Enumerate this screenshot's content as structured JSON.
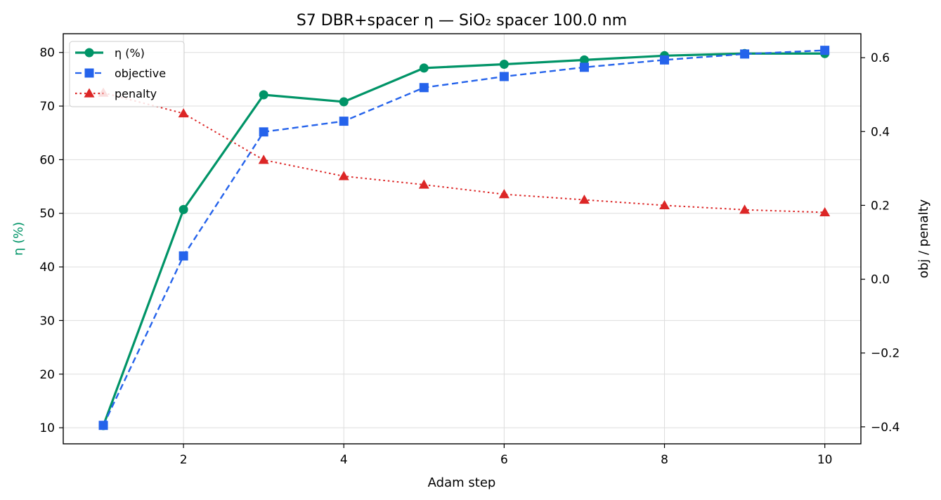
{
  "chart_data": {
    "type": "line",
    "title": "S7 DBR+spacer η — SiO₂ spacer 100.0 nm",
    "xlabel": "Adam step",
    "ylabel_left": "η (%)",
    "ylabel_right": "obj / penalty",
    "x": [
      1,
      2,
      3,
      4,
      5,
      6,
      7,
      8,
      9,
      10
    ],
    "xlim": [
      0.5,
      10.45
    ],
    "ylim_left": [
      7,
      83.5
    ],
    "ylim_right": [
      -0.446,
      0.665
    ],
    "x_ticks": [
      2,
      4,
      6,
      8,
      10
    ],
    "y_left_ticks": [
      10,
      20,
      30,
      40,
      50,
      60,
      70,
      80
    ],
    "y_right_ticks": [
      -0.4,
      -0.2,
      0.0,
      0.2,
      0.4,
      0.6
    ],
    "y_right_tick_labels": [
      "−0.4",
      "−0.2",
      "0.0",
      "0.2",
      "0.4",
      "0.6"
    ],
    "grid": true,
    "legend_position": "top-left",
    "series": [
      {
        "name": "η (%)",
        "axis": "left",
        "color": "#009467",
        "marker": "circle",
        "line_style": "solid",
        "values": [
          10.4,
          50.7,
          72.1,
          70.8,
          77.1,
          77.8,
          78.6,
          79.4,
          79.8,
          79.8
        ]
      },
      {
        "name": "objective",
        "axis": "right",
        "color": "#2563eb",
        "marker": "square",
        "line_style": "dashed",
        "values": [
          -0.396,
          0.063,
          0.399,
          0.428,
          0.519,
          0.549,
          0.574,
          0.594,
          0.61,
          0.62
        ]
      },
      {
        "name": "penalty",
        "axis": "right",
        "color": "#dc2626",
        "marker": "triangle",
        "line_style": "dotted",
        "values": [
          0.505,
          0.449,
          0.323,
          0.279,
          0.256,
          0.23,
          0.215,
          0.2,
          0.188,
          0.181
        ]
      }
    ]
  }
}
